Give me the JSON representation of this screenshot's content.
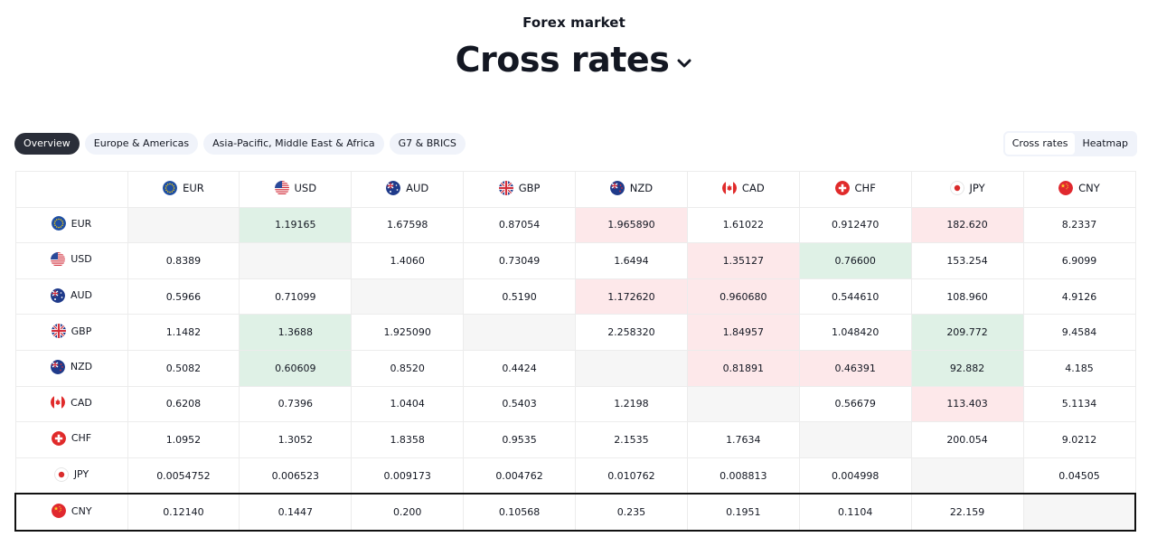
{
  "header": {
    "eyebrow": "Forex market",
    "title": "Cross rates"
  },
  "chips": [
    {
      "label": "Overview",
      "active": true
    },
    {
      "label": "Europe & Americas",
      "active": false
    },
    {
      "label": "Asia-Pacific, Middle East & Africa",
      "active": false
    },
    {
      "label": "G7 & BRICS",
      "active": false
    }
  ],
  "view_switch": [
    {
      "label": "Cross rates",
      "active": true
    },
    {
      "label": "Heatmap",
      "active": false
    }
  ],
  "currencies": [
    {
      "code": "EUR",
      "icon": "eu-flag-icon"
    },
    {
      "code": "USD",
      "icon": "us-flag-icon"
    },
    {
      "code": "AUD",
      "icon": "au-flag-icon"
    },
    {
      "code": "GBP",
      "icon": "gb-flag-icon"
    },
    {
      "code": "NZD",
      "icon": "nz-flag-icon"
    },
    {
      "code": "CAD",
      "icon": "ca-flag-icon"
    },
    {
      "code": "CHF",
      "icon": "ch-flag-icon"
    },
    {
      "code": "JPY",
      "icon": "jp-flag-icon"
    },
    {
      "code": "CNY",
      "icon": "cn-flag-icon"
    }
  ],
  "colors": {
    "positive": "#dff1e6",
    "negative": "#fde8ea",
    "diagonal": "#f6f6f6"
  },
  "rows": [
    {
      "code": "EUR",
      "cells": [
        {
          "v": "",
          "s": "diag"
        },
        {
          "v": "1.19165",
          "s": "pos"
        },
        {
          "v": "1.67598",
          "s": ""
        },
        {
          "v": "0.87054",
          "s": ""
        },
        {
          "v": "1.965890",
          "s": "neg"
        },
        {
          "v": "1.61022",
          "s": ""
        },
        {
          "v": "0.912470",
          "s": ""
        },
        {
          "v": "182.620",
          "s": "neg"
        },
        {
          "v": "8.2337",
          "s": ""
        }
      ]
    },
    {
      "code": "USD",
      "cells": [
        {
          "v": "0.8389",
          "s": ""
        },
        {
          "v": "",
          "s": "diag"
        },
        {
          "v": "1.4060",
          "s": ""
        },
        {
          "v": "0.73049",
          "s": ""
        },
        {
          "v": "1.6494",
          "s": ""
        },
        {
          "v": "1.35127",
          "s": "neg"
        },
        {
          "v": "0.76600",
          "s": "pos"
        },
        {
          "v": "153.254",
          "s": ""
        },
        {
          "v": "6.9099",
          "s": ""
        }
      ]
    },
    {
      "code": "AUD",
      "cells": [
        {
          "v": "0.5966",
          "s": ""
        },
        {
          "v": "0.71099",
          "s": ""
        },
        {
          "v": "",
          "s": "diag"
        },
        {
          "v": "0.5190",
          "s": ""
        },
        {
          "v": "1.172620",
          "s": "neg"
        },
        {
          "v": "0.960680",
          "s": "neg"
        },
        {
          "v": "0.544610",
          "s": ""
        },
        {
          "v": "108.960",
          "s": ""
        },
        {
          "v": "4.9126",
          "s": ""
        }
      ]
    },
    {
      "code": "GBP",
      "cells": [
        {
          "v": "1.1482",
          "s": ""
        },
        {
          "v": "1.3688",
          "s": "pos"
        },
        {
          "v": "1.925090",
          "s": ""
        },
        {
          "v": "",
          "s": "diag"
        },
        {
          "v": "2.258320",
          "s": ""
        },
        {
          "v": "1.84957",
          "s": "neg"
        },
        {
          "v": "1.048420",
          "s": ""
        },
        {
          "v": "209.772",
          "s": "pos"
        },
        {
          "v": "9.4584",
          "s": ""
        }
      ]
    },
    {
      "code": "NZD",
      "cells": [
        {
          "v": "0.5082",
          "s": ""
        },
        {
          "v": "0.60609",
          "s": "pos"
        },
        {
          "v": "0.8520",
          "s": ""
        },
        {
          "v": "0.4424",
          "s": ""
        },
        {
          "v": "",
          "s": "diag"
        },
        {
          "v": "0.81891",
          "s": "neg"
        },
        {
          "v": "0.46391",
          "s": "neg"
        },
        {
          "v": "92.882",
          "s": "pos"
        },
        {
          "v": "4.185",
          "s": ""
        }
      ]
    },
    {
      "code": "CAD",
      "cells": [
        {
          "v": "0.6208",
          "s": ""
        },
        {
          "v": "0.7396",
          "s": ""
        },
        {
          "v": "1.0404",
          "s": ""
        },
        {
          "v": "0.5403",
          "s": ""
        },
        {
          "v": "1.2198",
          "s": ""
        },
        {
          "v": "",
          "s": "diag"
        },
        {
          "v": "0.56679",
          "s": ""
        },
        {
          "v": "113.403",
          "s": "neg"
        },
        {
          "v": "5.1134",
          "s": ""
        }
      ]
    },
    {
      "code": "CHF",
      "cells": [
        {
          "v": "1.0952",
          "s": ""
        },
        {
          "v": "1.3052",
          "s": ""
        },
        {
          "v": "1.8358",
          "s": ""
        },
        {
          "v": "0.9535",
          "s": ""
        },
        {
          "v": "2.1535",
          "s": ""
        },
        {
          "v": "1.7634",
          "s": ""
        },
        {
          "v": "",
          "s": "diag"
        },
        {
          "v": "200.054",
          "s": ""
        },
        {
          "v": "9.0212",
          "s": ""
        }
      ]
    },
    {
      "code": "JPY",
      "cells": [
        {
          "v": "0.0054752",
          "s": ""
        },
        {
          "v": "0.006523",
          "s": ""
        },
        {
          "v": "0.009173",
          "s": ""
        },
        {
          "v": "0.004762",
          "s": ""
        },
        {
          "v": "0.010762",
          "s": ""
        },
        {
          "v": "0.008813",
          "s": ""
        },
        {
          "v": "0.004998",
          "s": ""
        },
        {
          "v": "",
          "s": "diag"
        },
        {
          "v": "0.04505",
          "s": ""
        }
      ]
    },
    {
      "code": "CNY",
      "cells": [
        {
          "v": "0.12140",
          "s": ""
        },
        {
          "v": "0.1447",
          "s": ""
        },
        {
          "v": "0.200",
          "s": ""
        },
        {
          "v": "0.10568",
          "s": ""
        },
        {
          "v": "0.235",
          "s": ""
        },
        {
          "v": "0.1951",
          "s": ""
        },
        {
          "v": "0.1104",
          "s": ""
        },
        {
          "v": "22.159",
          "s": ""
        },
        {
          "v": "",
          "s": "diag"
        }
      ]
    }
  ]
}
